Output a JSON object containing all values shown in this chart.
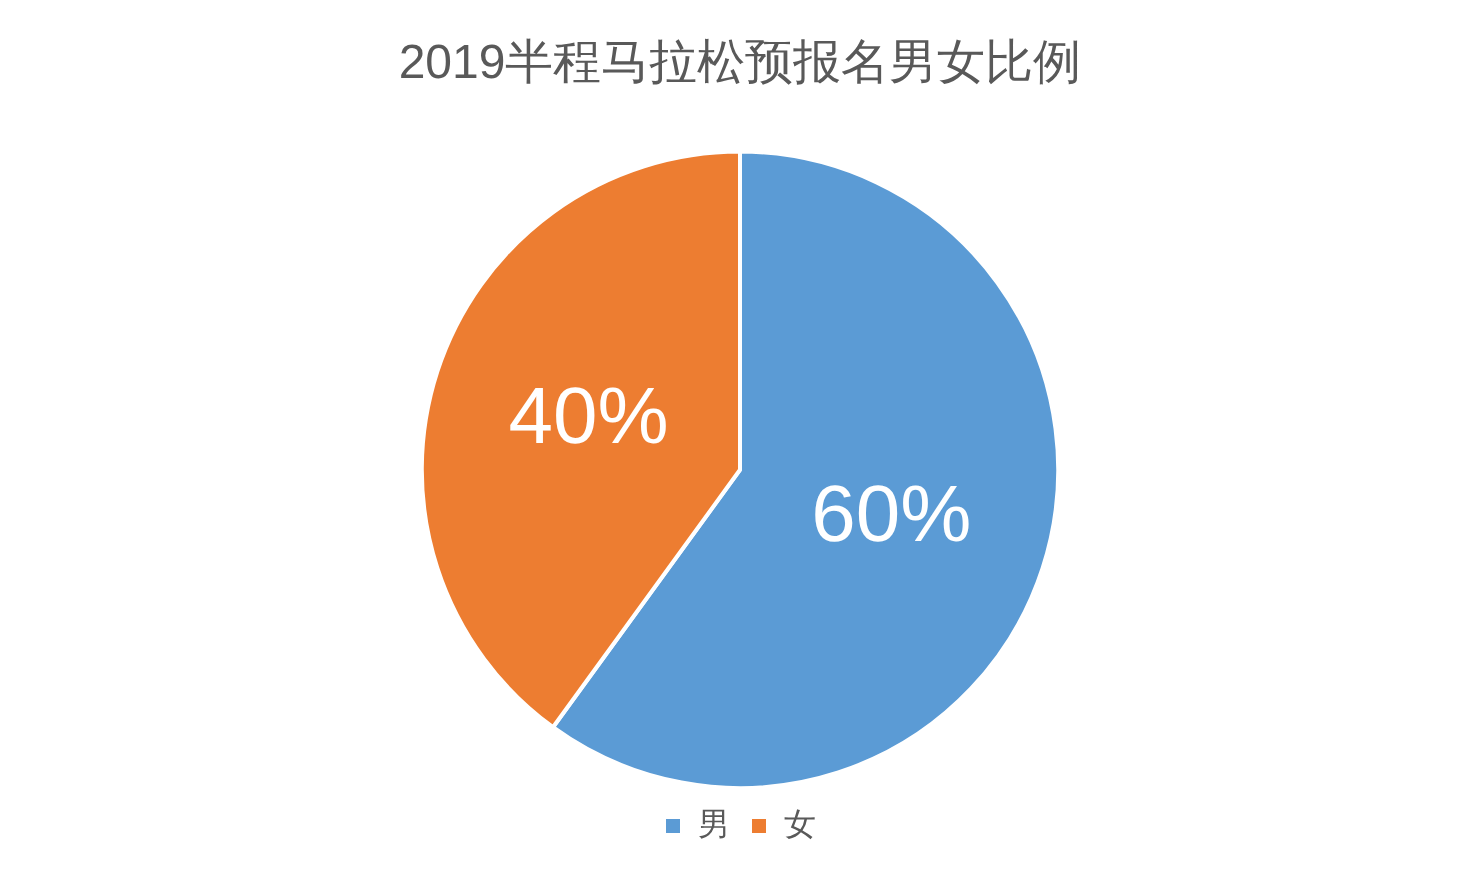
{
  "chart_data": {
    "type": "pie",
    "title": "2019半程马拉松预报名男女比例",
    "categories": [
      "男",
      "女"
    ],
    "values": [
      60,
      40
    ],
    "colors": [
      "#5b9bd5",
      "#ed7d31"
    ],
    "value_labels": [
      "60%",
      "40%"
    ],
    "legend": "bottom"
  }
}
